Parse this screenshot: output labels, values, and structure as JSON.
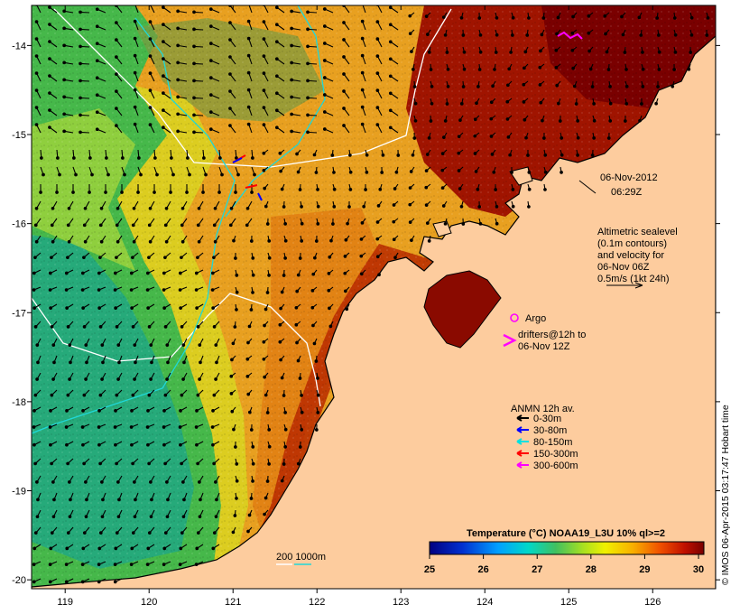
{
  "map": {
    "lon_ticks": [
      "119",
      "120",
      "121",
      "122",
      "123",
      "124",
      "125",
      "126"
    ],
    "lat_ticks": [
      "-14",
      "-15",
      "-16",
      "-17",
      "-18",
      "-19",
      "-20"
    ],
    "lon_range": [
      118.6,
      126.75
    ],
    "lat_range": [
      -20.1,
      -13.55
    ]
  },
  "annotations": {
    "date": "06-Nov-2012",
    "time": "06:29Z",
    "sealevel_lines": [
      "Altimetric sealevel",
      "(0.1m contours)",
      "and velocity for",
      "06-Nov 06Z",
      "0.5m/s (1kt 24h)"
    ],
    "argo_label": "Argo",
    "drifters_lines": [
      "drifters@12h to",
      "06-Nov 12Z"
    ],
    "depth_contours_label": "200  1000m"
  },
  "anmn_legend": {
    "title": "ANMN 12h av.",
    "items": [
      {
        "label": "0-30m",
        "color": "#000000"
      },
      {
        "label": "30-80m",
        "color": "#0000ff"
      },
      {
        "label": "80-150m",
        "color": "#00e0e0"
      },
      {
        "label": "150-300m",
        "color": "#ff0000"
      },
      {
        "label": "300-600m",
        "color": "#ff00ff"
      }
    ]
  },
  "colorbar": {
    "title": "Temperature (°C) NOAA19_L3U 10% ql>=2",
    "ticks": [
      "25",
      "26",
      "27",
      "28",
      "29",
      "30"
    ],
    "range": [
      25,
      30.1
    ]
  },
  "credit": "© IMOS 06-Apr-2015 03:17:47 Hobart time",
  "colors": {
    "land": "#fdcc9e",
    "coast": "#000000",
    "contour_200": "#ffffff",
    "contour_1000": "#1fd8d8"
  }
}
